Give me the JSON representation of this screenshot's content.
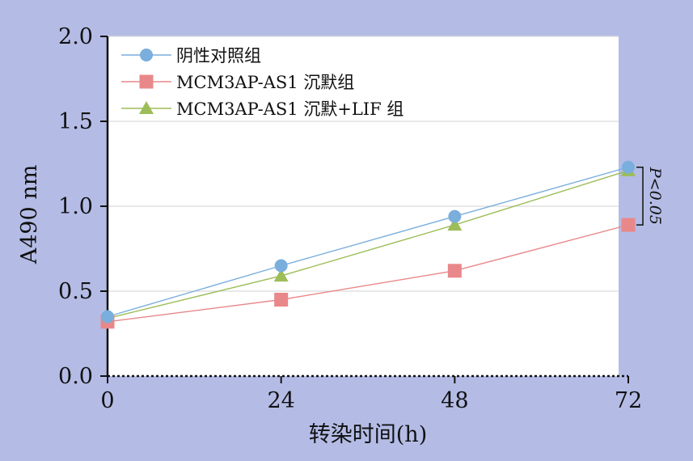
{
  "chart_data": {
    "type": "line",
    "xlabel": "转染时间(h)",
    "ylabel": "A490 nm",
    "x": [
      0,
      24,
      48,
      72
    ],
    "x_ticks": [
      "0",
      "24",
      "48",
      "72"
    ],
    "xlim": [
      0,
      72
    ],
    "ylim": [
      0,
      2.0
    ],
    "y_ticks": [
      "0.0",
      "0.5",
      "1.0",
      "1.5",
      "2.0"
    ],
    "grid": true,
    "legend_position": "top-left",
    "series": [
      {
        "name": "阴性对照组",
        "values": [
          0.35,
          0.65,
          0.94,
          1.23
        ],
        "color": "#7aaedc",
        "marker": "circle"
      },
      {
        "name": "MCM3AP-AS1 沉默组",
        "values": [
          0.32,
          0.45,
          0.62,
          0.89
        ],
        "color": "#e8888a",
        "marker": "square"
      },
      {
        "name": "MCM3AP-AS1 沉默+LIF 组",
        "values": [
          0.34,
          0.59,
          0.89,
          1.21
        ],
        "color": "#9dbd58",
        "marker": "triangle"
      }
    ],
    "annotation": {
      "text": "P<0.05"
    }
  },
  "colors": {
    "page_background": "#b4bce6",
    "plot_background": "#ffffff",
    "gridline": "#d9d9d9",
    "axis": "#111111"
  }
}
